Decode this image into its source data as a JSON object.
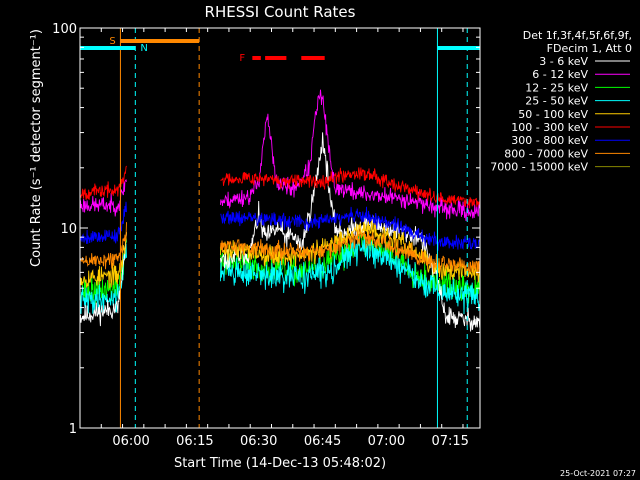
{
  "chart_data": {
    "type": "line",
    "title": "RHESSI Count Rates",
    "xlabel": "Start Time (14-Dec-13 05:48:02)",
    "ylabel": "Count Rate (s⁻¹ detector segment⁻¹)",
    "y_scale": "log",
    "ylim": [
      1,
      100
    ],
    "y_tick_labels": [
      "1",
      "10",
      "100"
    ],
    "xlim_minutes_since_0548": [
      0,
      94
    ],
    "x_tick_labels": [
      "06:00",
      "06:15",
      "06:30",
      "06:45",
      "07:00",
      "07:15"
    ],
    "x_tick_minutes": [
      12,
      27,
      42,
      57,
      72,
      87
    ],
    "footer_date": "25-Oct-2021 07:27",
    "legend": {
      "header": [
        "Det 1f,3f,4f,5f,6f,9f,",
        "FDecim 1, Att 0"
      ],
      "placement": "right"
    },
    "gap_minutes": [
      11,
      33
    ],
    "series": [
      {
        "name": "3 - 6 keV",
        "color": "#ffffff",
        "noise": 0.06,
        "seed": 11,
        "points": [
          [
            0,
            3.6
          ],
          [
            9,
            4.0
          ],
          [
            10,
            6.0
          ],
          [
            11,
            9.0
          ],
          [
            33,
            6.8
          ],
          [
            40,
            7.5
          ],
          [
            41,
            9.5
          ],
          [
            42,
            11.5
          ],
          [
            43,
            9.5
          ],
          [
            44,
            9
          ],
          [
            45,
            9.5
          ],
          [
            47,
            10
          ],
          [
            48,
            9
          ],
          [
            50,
            9.2
          ],
          [
            52,
            8
          ],
          [
            54,
            12
          ],
          [
            55,
            15
          ],
          [
            56,
            20
          ],
          [
            57,
            28
          ],
          [
            58,
            20
          ],
          [
            59,
            13
          ],
          [
            60,
            10
          ],
          [
            62,
            9.5
          ],
          [
            65,
            10
          ],
          [
            68,
            10.5
          ],
          [
            72,
            10
          ],
          [
            76,
            9.5
          ],
          [
            80,
            9
          ],
          [
            84,
            5.5
          ],
          [
            86,
            3.6
          ],
          [
            94,
            3.4
          ]
        ]
      },
      {
        "name": "6 - 12 keV",
        "color": "#ff00ff",
        "noise": 0.05,
        "seed": 23,
        "points": [
          [
            0,
            13
          ],
          [
            9,
            13
          ],
          [
            10,
            15
          ],
          [
            11,
            18
          ],
          [
            33,
            13.5
          ],
          [
            40,
            14.5
          ],
          [
            42,
            17
          ],
          [
            43,
            26
          ],
          [
            44,
            36
          ],
          [
            45,
            26
          ],
          [
            46,
            17
          ],
          [
            50,
            15.5
          ],
          [
            54,
            20
          ],
          [
            55,
            32
          ],
          [
            56,
            44
          ],
          [
            57,
            45
          ],
          [
            58,
            30
          ],
          [
            59,
            20
          ],
          [
            60,
            16
          ],
          [
            65,
            15
          ],
          [
            70,
            14.5
          ],
          [
            76,
            14
          ],
          [
            80,
            13.5
          ],
          [
            84,
            12.5
          ],
          [
            94,
            12
          ]
        ]
      },
      {
        "name": "12 - 25 keV",
        "color": "#00ff00",
        "noise": 0.08,
        "seed": 37,
        "points": [
          [
            0,
            4.8
          ],
          [
            9,
            5
          ],
          [
            10,
            6.5
          ],
          [
            11,
            9
          ],
          [
            33,
            6.8
          ],
          [
            40,
            6.5
          ],
          [
            48,
            6
          ],
          [
            54,
            6.2
          ],
          [
            58,
            6.5
          ],
          [
            62,
            7.5
          ],
          [
            66,
            8.5
          ],
          [
            70,
            8
          ],
          [
            76,
            6.8
          ],
          [
            80,
            5.8
          ],
          [
            84,
            5.3
          ],
          [
            94,
            4.8
          ]
        ]
      },
      {
        "name": "25 - 50 keV",
        "color": "#00ffff",
        "noise": 0.08,
        "seed": 41,
        "points": [
          [
            0,
            4.3
          ],
          [
            9,
            4.5
          ],
          [
            10,
            6
          ],
          [
            11,
            8
          ],
          [
            33,
            6.2
          ],
          [
            40,
            5.9
          ],
          [
            48,
            5.6
          ],
          [
            54,
            5.8
          ],
          [
            58,
            6
          ],
          [
            62,
            7
          ],
          [
            66,
            8
          ],
          [
            70,
            7.5
          ],
          [
            76,
            6.3
          ],
          [
            80,
            5.3
          ],
          [
            84,
            4.8
          ],
          [
            94,
            4.5
          ]
        ]
      },
      {
        "name": "50 - 100 keV",
        "color": "#ffcc00",
        "noise": 0.06,
        "seed": 53,
        "points": [
          [
            0,
            5.6
          ],
          [
            9,
            5.8
          ],
          [
            10,
            7
          ],
          [
            11,
            9.5
          ],
          [
            33,
            7.8
          ],
          [
            40,
            7.6
          ],
          [
            48,
            7.2
          ],
          [
            54,
            7.4
          ],
          [
            58,
            8
          ],
          [
            62,
            9.2
          ],
          [
            66,
            10
          ],
          [
            70,
            9.5
          ],
          [
            76,
            8.3
          ],
          [
            80,
            7.2
          ],
          [
            84,
            6.2
          ],
          [
            94,
            5.9
          ]
        ]
      },
      {
        "name": "100 - 300 keV",
        "color": "#ff0000",
        "noise": 0.04,
        "seed": 67,
        "points": [
          [
            0,
            15
          ],
          [
            9,
            15.5
          ],
          [
            10,
            17
          ],
          [
            11,
            20
          ],
          [
            33,
            17.5
          ],
          [
            40,
            18
          ],
          [
            48,
            17
          ],
          [
            54,
            17
          ],
          [
            58,
            17.5
          ],
          [
            62,
            18.5
          ],
          [
            66,
            19
          ],
          [
            70,
            18
          ],
          [
            76,
            16
          ],
          [
            80,
            15
          ],
          [
            84,
            14
          ],
          [
            94,
            13.5
          ]
        ]
      },
      {
        "name": "300 - 800 keV",
        "color": "#0000ff",
        "noise": 0.045,
        "seed": 79,
        "points": [
          [
            0,
            9
          ],
          [
            9,
            9.2
          ],
          [
            10,
            10.5
          ],
          [
            11,
            13
          ],
          [
            33,
            11.5
          ],
          [
            40,
            11.2
          ],
          [
            48,
            10.8
          ],
          [
            54,
            10.6
          ],
          [
            58,
            11
          ],
          [
            62,
            11.3
          ],
          [
            66,
            11.5
          ],
          [
            70,
            11
          ],
          [
            76,
            10
          ],
          [
            80,
            9
          ],
          [
            84,
            8.6
          ],
          [
            94,
            8.3
          ]
        ]
      },
      {
        "name": "800 - 7000 keV",
        "color": "#ff8800",
        "noise": 0.05,
        "seed": 89,
        "points": [
          [
            0,
            6.8
          ],
          [
            9,
            7
          ],
          [
            10,
            8
          ],
          [
            11,
            10
          ],
          [
            33,
            8.3
          ],
          [
            40,
            8
          ],
          [
            48,
            7.6
          ],
          [
            54,
            7.5
          ],
          [
            58,
            7.8
          ],
          [
            62,
            8.5
          ],
          [
            66,
            9
          ],
          [
            70,
            8.6
          ],
          [
            76,
            7.8
          ],
          [
            80,
            7
          ],
          [
            84,
            6.6
          ],
          [
            94,
            6.3
          ]
        ]
      },
      {
        "name": "7000 - 15000 keV",
        "color": "#888800",
        "noise": 0,
        "seed": 0,
        "points": []
      }
    ],
    "spacecraft_bars": {
      "S_label": "S",
      "N_label": "N",
      "F_label": "F",
      "S": {
        "start": 9.5,
        "end": 28,
        "color": "#ff8800"
      },
      "N": [
        {
          "start": 0,
          "end": 13,
          "color": "#00ffff"
        },
        {
          "start": 84,
          "end": 94,
          "color": "#00ffff"
        }
      ],
      "F": [
        {
          "start": 40.5,
          "end": 42.5
        },
        {
          "start": 43.5,
          "end": 48.5
        },
        {
          "start": 52,
          "end": 57.5
        }
      ],
      "F_color": "#ff0000"
    },
    "vertical_markers": [
      {
        "minute": 9.5,
        "color": "#ff8800",
        "dash": false
      },
      {
        "minute": 13,
        "color": "#00ffff",
        "dash": true
      },
      {
        "minute": 28,
        "color": "#ff8800",
        "dash": true
      },
      {
        "minute": 84,
        "color": "#00ffff",
        "dash": false
      },
      {
        "minute": 91,
        "color": "#00ffff",
        "dash": true
      }
    ]
  }
}
